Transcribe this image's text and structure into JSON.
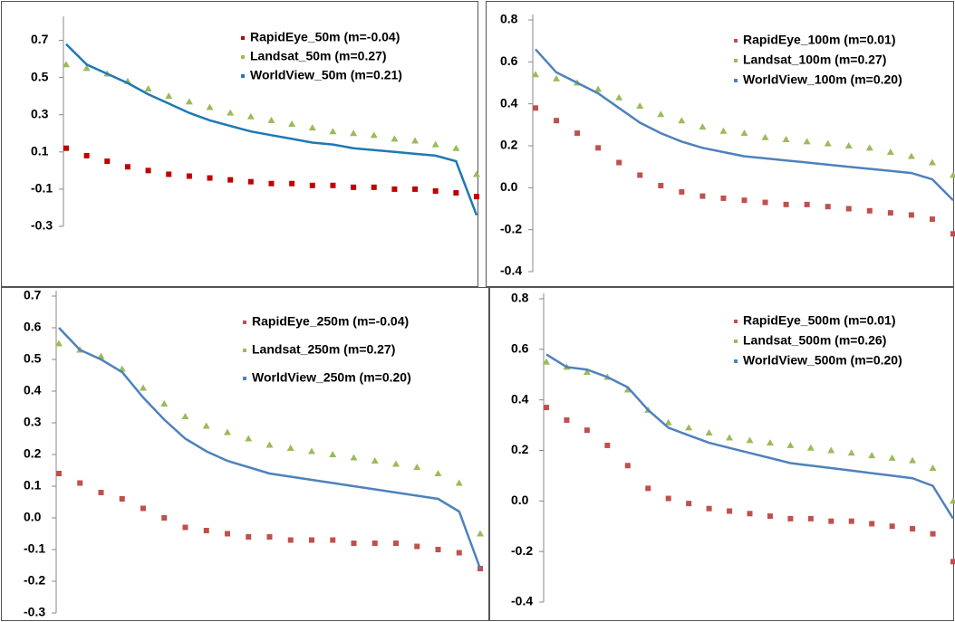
{
  "chart_data": [
    {
      "type": "scatter",
      "legend": "top-right",
      "ylim": [
        -0.3,
        0.8
      ],
      "yticks": [
        -0.3,
        -0.1,
        0.1,
        0.3,
        0.5,
        0.7
      ],
      "series": [
        {
          "name": "RapidEye_50m (m=-0.04)",
          "color": "#c00000",
          "marker": "square",
          "values": [
            0.12,
            0.08,
            0.05,
            0.02,
            0.0,
            -0.02,
            -0.03,
            -0.04,
            -0.05,
            -0.06,
            -0.07,
            -0.07,
            -0.08,
            -0.08,
            -0.09,
            -0.09,
            -0.1,
            -0.1,
            -0.11,
            -0.12,
            -0.14
          ]
        },
        {
          "name": "Landsat_50m (m=0.27)",
          "color": "#9bbb59",
          "marker": "triangle",
          "values": [
            0.57,
            0.55,
            0.52,
            0.48,
            0.44,
            0.4,
            0.37,
            0.34,
            0.31,
            0.29,
            0.27,
            0.25,
            0.23,
            0.21,
            0.2,
            0.19,
            0.17,
            0.16,
            0.14,
            0.12,
            -0.02
          ]
        },
        {
          "name": "WorldView_50m (m=0.21)",
          "color": "#1f78b4",
          "marker": "line",
          "values": [
            0.68,
            0.57,
            0.52,
            0.47,
            0.41,
            0.36,
            0.31,
            0.27,
            0.24,
            0.21,
            0.19,
            0.17,
            0.15,
            0.14,
            0.12,
            0.11,
            0.1,
            0.09,
            0.08,
            0.05,
            -0.24
          ]
        }
      ]
    },
    {
      "type": "scatter",
      "legend": "top-right",
      "ylim": [
        -0.4,
        0.8
      ],
      "yticks": [
        -0.4,
        -0.2,
        {
          "value": 0,
          "label": "0.0"
        },
        0.2,
        0.4,
        0.6,
        0.8
      ],
      "series": [
        {
          "name": "RapidEye_100m (m=0.01)",
          "color": "#c0504d",
          "marker": "square",
          "values": [
            0.38,
            0.32,
            0.26,
            0.19,
            0.12,
            0.06,
            0.01,
            -0.02,
            -0.04,
            -0.05,
            -0.06,
            -0.07,
            -0.08,
            -0.08,
            -0.09,
            -0.1,
            -0.11,
            -0.12,
            -0.13,
            -0.15,
            -0.22
          ]
        },
        {
          "name": "Landsat_100m (m=0.27)",
          "color": "#9bbb59",
          "marker": "triangle",
          "values": [
            0.54,
            0.52,
            0.5,
            0.47,
            0.43,
            0.39,
            0.35,
            0.32,
            0.29,
            0.27,
            0.26,
            0.24,
            0.23,
            0.22,
            0.21,
            0.2,
            0.19,
            0.17,
            0.15,
            0.12,
            0.06
          ]
        },
        {
          "name": "WorldView_100m (m=0.20)",
          "color": "#4f81bd",
          "marker": "line",
          "values": [
            0.66,
            0.55,
            0.5,
            0.45,
            0.38,
            0.31,
            0.26,
            0.22,
            0.19,
            0.17,
            0.15,
            0.14,
            0.13,
            0.12,
            0.11,
            0.1,
            0.09,
            0.08,
            0.07,
            0.04,
            -0.06
          ]
        }
      ]
    },
    {
      "type": "scatter",
      "legend": "top-right",
      "ylim": [
        -0.3,
        0.7
      ],
      "yticks": [
        -0.3,
        -0.2,
        -0.1,
        {
          "value": 0,
          "label": "0.0"
        },
        0.1,
        0.2,
        0.3,
        0.4,
        0.5,
        0.6,
        0.7
      ],
      "series": [
        {
          "name": "RapidEye_250m (m=-0.04)",
          "color": "#c0504d",
          "marker": "square",
          "values": [
            0.14,
            0.11,
            0.08,
            0.06,
            0.03,
            0.0,
            -0.03,
            -0.04,
            -0.05,
            -0.06,
            -0.06,
            -0.07,
            -0.07,
            -0.07,
            -0.08,
            -0.08,
            -0.08,
            -0.09,
            -0.1,
            -0.11,
            -0.16
          ]
        },
        {
          "name": "Landsat_250m (m=0.27)",
          "color": "#9bbb59",
          "marker": "triangle",
          "values": [
            0.55,
            0.53,
            0.51,
            0.47,
            0.41,
            0.36,
            0.32,
            0.29,
            0.27,
            0.25,
            0.23,
            0.22,
            0.21,
            0.2,
            0.19,
            0.18,
            0.17,
            0.16,
            0.14,
            0.11,
            -0.05
          ]
        },
        {
          "name": "WorldView_250m (m=0.20)",
          "color": "#4f81bd",
          "marker": "line",
          "values": [
            0.6,
            0.53,
            0.5,
            0.46,
            0.38,
            0.31,
            0.25,
            0.21,
            0.18,
            0.16,
            0.14,
            0.13,
            0.12,
            0.11,
            0.1,
            0.09,
            0.08,
            0.07,
            0.06,
            0.02,
            -0.16
          ]
        }
      ]
    },
    {
      "type": "scatter",
      "legend": "top-right",
      "ylim": [
        -0.4,
        0.8
      ],
      "yticks": [
        -0.4,
        -0.2,
        {
          "value": 0,
          "label": "0.0"
        },
        0.2,
        0.4,
        0.6,
        0.8
      ],
      "series": [
        {
          "name": "RapidEye_500m (m=0.01)",
          "color": "#c0504d",
          "marker": "square",
          "values": [
            0.37,
            0.32,
            0.28,
            0.22,
            0.14,
            0.05,
            0.01,
            -0.01,
            -0.03,
            -0.04,
            -0.05,
            -0.06,
            -0.07,
            -0.07,
            -0.08,
            -0.08,
            -0.09,
            -0.1,
            -0.11,
            -0.13,
            -0.24
          ]
        },
        {
          "name": "Landsat_500m (m=0.26)",
          "color": "#9bbb59",
          "marker": "triangle",
          "values": [
            0.55,
            0.53,
            0.51,
            0.49,
            0.44,
            0.36,
            0.31,
            0.29,
            0.27,
            0.25,
            0.24,
            0.23,
            0.22,
            0.21,
            0.2,
            0.19,
            0.18,
            0.17,
            0.16,
            0.13,
            0.0
          ]
        },
        {
          "name": "WorldView_500m (m=0.20)",
          "color": "#4f81bd",
          "marker": "line",
          "values": [
            0.58,
            0.53,
            0.52,
            0.49,
            0.45,
            0.36,
            0.29,
            0.26,
            0.23,
            0.21,
            0.19,
            0.17,
            0.15,
            0.14,
            0.13,
            0.12,
            0.11,
            0.1,
            0.09,
            0.06,
            -0.07
          ]
        }
      ]
    }
  ]
}
